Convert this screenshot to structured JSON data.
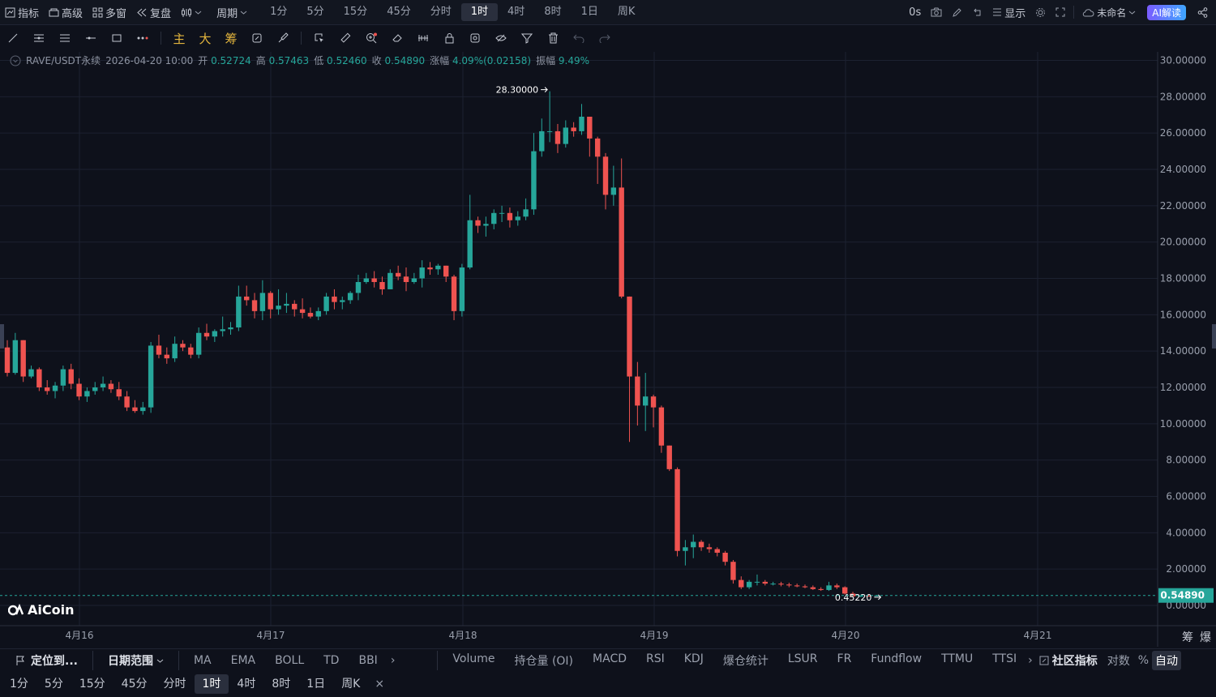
{
  "topbar": {
    "indicators": "指标",
    "advanced": "高级",
    "multi_window": "多窗",
    "replay": "复盘",
    "period_menu": "周期",
    "periods": [
      "1分",
      "5分",
      "15分",
      "45分",
      "分时",
      "1时",
      "4时",
      "8时",
      "1日",
      "周K"
    ],
    "active_period": "1时",
    "countdown": "0s",
    "display": "显示",
    "layout_name": "未命名",
    "ai_button": "AI解读"
  },
  "toolbar": {
    "main": "主",
    "big": "大",
    "chips": "筹"
  },
  "info": {
    "symbol": "RAVE/USDT永续",
    "datetime": "2026-04-20 10:00",
    "open_label": "开",
    "open": "0.52724",
    "high_label": "高",
    "high": "0.57463",
    "low_label": "低",
    "low": "0.52460",
    "close_label": "收",
    "close": "0.54890",
    "change_label": "涨幅",
    "change": "4.09%(0.02158)",
    "amp_label": "振幅",
    "amp": "9.49%"
  },
  "chart_data": {
    "type": "candlestick",
    "ylim": [
      0,
      30
    ],
    "y_ticks": [
      "30.00000",
      "28.00000",
      "26.00000",
      "24.00000",
      "22.00000",
      "20.00000",
      "18.00000",
      "16.00000",
      "14.00000",
      "12.00000",
      "10.00000",
      "8.00000",
      "6.00000",
      "4.00000",
      "2.00000",
      "0.00000"
    ],
    "x_ticks": [
      "4月16",
      "4月17",
      "4月18",
      "4月19",
      "4月20",
      "4月21"
    ],
    "high_marker": "28.30000",
    "low_marker": "0.45220",
    "last_price": "0.54890",
    "colors": {
      "up": "#26a69a",
      "down": "#ef5350",
      "grid": "#1c2130",
      "bg": "#0e111b"
    },
    "candles": [
      [
        14.2,
        14.6,
        12.6,
        12.8
      ],
      [
        12.8,
        15.0,
        12.7,
        14.6
      ],
      [
        14.6,
        14.6,
        12.3,
        12.6
      ],
      [
        12.6,
        13.2,
        12.5,
        13.0
      ],
      [
        13.0,
        13.1,
        11.8,
        12.0
      ],
      [
        12.0,
        12.4,
        11.6,
        11.8
      ],
      [
        11.8,
        12.3,
        11.4,
        12.1
      ],
      [
        12.1,
        13.2,
        11.8,
        13.0
      ],
      [
        13.0,
        13.3,
        11.9,
        12.2
      ],
      [
        12.2,
        12.5,
        11.3,
        11.5
      ],
      [
        11.5,
        12.0,
        11.2,
        11.8
      ],
      [
        11.8,
        12.3,
        11.6,
        12.0
      ],
      [
        12.0,
        12.6,
        11.8,
        12.2
      ],
      [
        12.2,
        12.4,
        11.7,
        11.9
      ],
      [
        11.9,
        12.3,
        11.3,
        11.5
      ],
      [
        11.5,
        11.8,
        10.7,
        10.9
      ],
      [
        10.9,
        11.3,
        10.6,
        10.7
      ],
      [
        10.7,
        11.2,
        10.5,
        10.9
      ],
      [
        10.9,
        14.5,
        10.6,
        14.3
      ],
      [
        14.3,
        14.9,
        13.6,
        13.8
      ],
      [
        13.8,
        14.2,
        13.3,
        13.6
      ],
      [
        13.6,
        14.8,
        13.4,
        14.4
      ],
      [
        14.4,
        14.6,
        14.0,
        14.2
      ],
      [
        14.2,
        14.4,
        13.6,
        13.8
      ],
      [
        13.8,
        15.3,
        13.6,
        15.0
      ],
      [
        15.0,
        15.5,
        14.6,
        14.8
      ],
      [
        14.8,
        15.2,
        14.5,
        15.1
      ],
      [
        15.1,
        15.9,
        14.8,
        15.2
      ],
      [
        15.2,
        15.6,
        14.9,
        15.3
      ],
      [
        15.3,
        17.6,
        15.1,
        17.0
      ],
      [
        17.0,
        17.6,
        16.5,
        16.8
      ],
      [
        16.8,
        17.2,
        15.8,
        16.2
      ],
      [
        16.2,
        17.9,
        15.7,
        17.2
      ],
      [
        17.2,
        17.3,
        15.8,
        16.3
      ],
      [
        16.3,
        17.4,
        16.0,
        16.5
      ],
      [
        16.5,
        17.2,
        16.1,
        16.6
      ],
      [
        16.6,
        16.8,
        15.9,
        16.3
      ],
      [
        16.3,
        16.9,
        15.8,
        16.1
      ],
      [
        16.1,
        16.4,
        15.8,
        15.9
      ],
      [
        15.9,
        16.4,
        15.7,
        16.2
      ],
      [
        16.2,
        17.2,
        16.0,
        17.0
      ],
      [
        17.0,
        17.4,
        16.3,
        16.7
      ],
      [
        16.7,
        17.0,
        16.3,
        16.8
      ],
      [
        16.8,
        17.3,
        16.6,
        17.2
      ],
      [
        17.2,
        18.2,
        16.8,
        17.8
      ],
      [
        17.8,
        18.3,
        17.7,
        18.0
      ],
      [
        18.0,
        18.4,
        17.5,
        17.8
      ],
      [
        17.8,
        18.1,
        17.1,
        17.4
      ],
      [
        17.4,
        18.5,
        17.4,
        18.3
      ],
      [
        18.3,
        18.7,
        17.9,
        18.1
      ],
      [
        18.1,
        18.6,
        17.3,
        17.8
      ],
      [
        17.8,
        18.3,
        17.7,
        18.0
      ],
      [
        18.0,
        19.0,
        17.5,
        18.6
      ],
      [
        18.6,
        18.9,
        18.2,
        18.5
      ],
      [
        18.5,
        18.8,
        18.2,
        18.7
      ],
      [
        18.7,
        18.7,
        17.8,
        18.1
      ],
      [
        18.1,
        18.2,
        15.7,
        16.2
      ],
      [
        16.2,
        18.8,
        15.9,
        18.6
      ],
      [
        18.6,
        22.6,
        18.5,
        21.2
      ],
      [
        21.2,
        21.4,
        20.5,
        20.9
      ],
      [
        20.9,
        21.4,
        20.3,
        21.0
      ],
      [
        21.0,
        21.8,
        20.7,
        21.6
      ],
      [
        21.6,
        22.0,
        21.1,
        21.6
      ],
      [
        21.6,
        21.9,
        20.8,
        21.2
      ],
      [
        21.2,
        21.7,
        20.9,
        21.4
      ],
      [
        21.4,
        22.4,
        21.2,
        21.8
      ],
      [
        21.8,
        26.0,
        21.5,
        25.0
      ],
      [
        25.0,
        26.8,
        24.7,
        26.1
      ],
      [
        26.1,
        28.3,
        25.5,
        26.1
      ],
      [
        26.1,
        26.5,
        24.9,
        25.4
      ],
      [
        25.4,
        26.7,
        25.2,
        26.3
      ],
      [
        26.3,
        26.6,
        25.8,
        26.1
      ],
      [
        26.1,
        27.6,
        25.9,
        26.9
      ],
      [
        26.9,
        26.9,
        24.7,
        25.7
      ],
      [
        25.7,
        25.8,
        23.2,
        24.7
      ],
      [
        24.7,
        24.9,
        21.8,
        22.6
      ],
      [
        22.6,
        24.2,
        22.0,
        23.0
      ],
      [
        23.0,
        24.6,
        16.9,
        17.0
      ],
      [
        17.0,
        17.0,
        9.0,
        12.6
      ],
      [
        12.6,
        13.4,
        9.9,
        11.0
      ],
      [
        11.0,
        12.8,
        9.6,
        11.5
      ],
      [
        11.5,
        11.6,
        9.8,
        10.9
      ],
      [
        10.9,
        11.0,
        8.4,
        8.8
      ],
      [
        8.8,
        8.8,
        7.4,
        7.5
      ],
      [
        7.5,
        7.6,
        2.7,
        3.0
      ],
      [
        3.0,
        3.6,
        2.2,
        3.2
      ],
      [
        3.2,
        3.9,
        2.6,
        3.5
      ],
      [
        3.5,
        3.6,
        3.0,
        3.2
      ],
      [
        3.2,
        3.4,
        2.9,
        3.1
      ],
      [
        3.1,
        3.2,
        2.7,
        2.9
      ],
      [
        2.9,
        3.0,
        2.2,
        2.4
      ],
      [
        2.4,
        2.5,
        1.2,
        1.4
      ],
      [
        1.4,
        1.6,
        0.9,
        1.0
      ],
      [
        1.0,
        1.4,
        0.9,
        1.3
      ],
      [
        1.3,
        1.7,
        1.1,
        1.3
      ],
      [
        1.3,
        1.4,
        1.1,
        1.2
      ],
      [
        1.2,
        1.3,
        1.1,
        1.2
      ],
      [
        1.2,
        1.3,
        1.05,
        1.15
      ],
      [
        1.15,
        1.25,
        1.0,
        1.1
      ],
      [
        1.1,
        1.2,
        1.0,
        1.05
      ],
      [
        1.05,
        1.15,
        0.95,
        1.0
      ],
      [
        1.0,
        1.1,
        0.85,
        0.9
      ],
      [
        0.9,
        1.0,
        0.8,
        0.85
      ],
      [
        0.85,
        1.3,
        0.8,
        1.1
      ],
      [
        1.1,
        1.2,
        0.9,
        1.0
      ],
      [
        1.0,
        1.05,
        0.6,
        0.65
      ],
      [
        0.65,
        0.75,
        0.45,
        0.5
      ],
      [
        0.5,
        0.6,
        0.45,
        0.53
      ],
      [
        0.53,
        0.58,
        0.5,
        0.52
      ],
      [
        0.527,
        0.575,
        0.525,
        0.549
      ]
    ]
  },
  "bottom": {
    "locate": "定位到...",
    "date_range": "日期范围",
    "indicators": [
      "MA",
      "EMA",
      "BOLL",
      "TD",
      "BBI"
    ],
    "sub_indicators": [
      "Volume",
      "持仓量 (OI)",
      "MACD",
      "RSI",
      "KDJ",
      "爆仓统计",
      "LSUR",
      "FR",
      "Fundflow",
      "TTMU",
      "TTSI"
    ],
    "community": "社区指标",
    "log": "对数",
    "pct": "%",
    "auto": "自动",
    "right_tabs": [
      "筹",
      "爆"
    ],
    "periods2": [
      "1分",
      "5分",
      "15分",
      "45分",
      "分时",
      "1时",
      "4时",
      "8时",
      "1日",
      "周K"
    ],
    "active2": "1时",
    "close": "×"
  },
  "logo": "AiCoin"
}
